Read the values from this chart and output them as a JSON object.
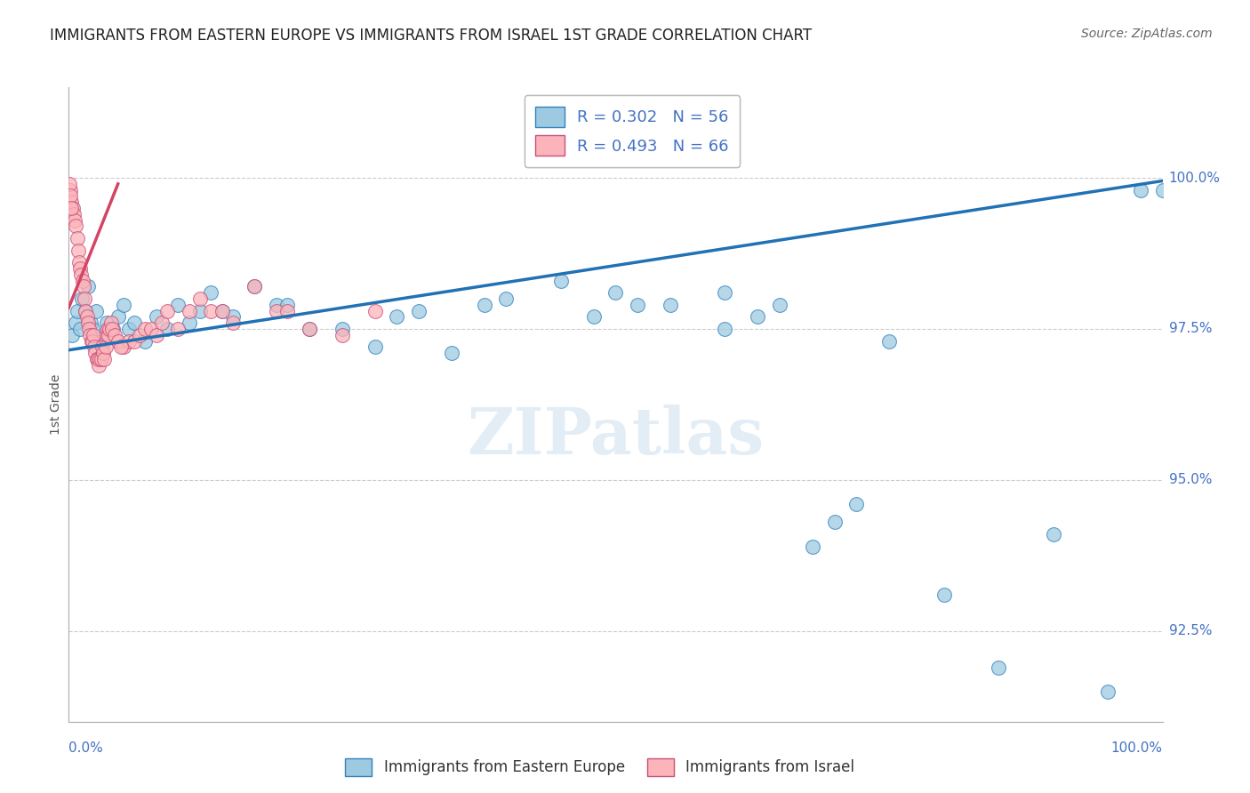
{
  "title": "IMMIGRANTS FROM EASTERN EUROPE VS IMMIGRANTS FROM ISRAEL 1ST GRADE CORRELATION CHART",
  "source": "Source: ZipAtlas.com",
  "ylabel": "1st Grade",
  "y_tick_labels": [
    "92.5%",
    "95.0%",
    "97.5%",
    "100.0%"
  ],
  "y_tick_values": [
    92.5,
    95.0,
    97.5,
    100.0
  ],
  "xlim": [
    0.0,
    100.0
  ],
  "ylim": [
    91.0,
    101.5
  ],
  "legend_blue": "R = 0.302   N = 56",
  "legend_pink": "R = 0.493   N = 66",
  "legend_bottom_blue": "Immigrants from Eastern Europe",
  "legend_bottom_pink": "Immigrants from Israel",
  "blue_face_color": "#9ecae1",
  "blue_edge_color": "#3182bd",
  "pink_face_color": "#fbb4b9",
  "pink_edge_color": "#c9507a",
  "blue_line_color": "#2171b5",
  "pink_line_color": "#d44466",
  "watermark": "ZIPatlas",
  "background_color": "#ffffff",
  "grid_color": "#cccccc",
  "tick_label_color": "#4472c4",
  "title_color": "#222222",
  "source_color": "#666666",
  "ylabel_color": "#555555",
  "blue_scatter_x": [
    0.3,
    0.6,
    0.8,
    1.0,
    1.2,
    1.5,
    1.8,
    2.0,
    2.2,
    2.5,
    3.0,
    3.5,
    4.0,
    4.5,
    5.0,
    5.5,
    6.0,
    7.0,
    8.0,
    9.0,
    10.0,
    11.0,
    12.0,
    13.0,
    14.0,
    15.0,
    17.0,
    19.0,
    20.0,
    22.0,
    25.0,
    28.0,
    30.0,
    32.0,
    35.0,
    38.0,
    40.0,
    45.0,
    48.0,
    50.0,
    52.0,
    55.0,
    60.0,
    63.0,
    65.0,
    68.0,
    70.0,
    72.0,
    75.0,
    80.0,
    85.0,
    90.0,
    95.0,
    98.0,
    100.0,
    60.0
  ],
  "blue_scatter_y": [
    97.4,
    97.6,
    97.8,
    97.5,
    98.0,
    97.8,
    98.2,
    97.6,
    97.5,
    97.8,
    97.3,
    97.6,
    97.5,
    97.7,
    97.9,
    97.5,
    97.6,
    97.3,
    97.7,
    97.5,
    97.9,
    97.6,
    97.8,
    98.1,
    97.8,
    97.7,
    98.2,
    97.9,
    97.9,
    97.5,
    97.5,
    97.2,
    97.7,
    97.8,
    97.1,
    97.9,
    98.0,
    98.3,
    97.7,
    98.1,
    97.9,
    97.9,
    98.1,
    97.7,
    97.9,
    93.9,
    94.3,
    94.6,
    97.3,
    93.1,
    91.9,
    94.1,
    91.5,
    99.8,
    99.8,
    97.5
  ],
  "pink_scatter_x": [
    0.15,
    0.25,
    0.35,
    0.45,
    0.55,
    0.65,
    0.75,
    0.85,
    0.95,
    1.05,
    1.15,
    1.25,
    1.35,
    1.45,
    1.55,
    1.65,
    1.75,
    1.85,
    1.95,
    2.05,
    2.15,
    2.25,
    2.35,
    2.45,
    2.55,
    2.65,
    2.75,
    2.85,
    2.95,
    3.05,
    3.15,
    3.25,
    3.35,
    3.45,
    3.55,
    3.65,
    3.75,
    3.85,
    3.95,
    4.2,
    4.5,
    5.0,
    5.5,
    6.0,
    6.5,
    7.0,
    7.5,
    8.0,
    8.5,
    9.0,
    10.0,
    11.0,
    12.0,
    13.0,
    14.0,
    15.0,
    17.0,
    19.0,
    20.0,
    22.0,
    25.0,
    28.0,
    0.08,
    4.8,
    0.12,
    0.22
  ],
  "pink_scatter_y": [
    99.8,
    99.6,
    99.5,
    99.4,
    99.3,
    99.2,
    99.0,
    98.8,
    98.6,
    98.5,
    98.4,
    98.3,
    98.2,
    98.0,
    97.8,
    97.7,
    97.6,
    97.5,
    97.4,
    97.3,
    97.3,
    97.4,
    97.2,
    97.1,
    97.0,
    97.0,
    96.9,
    97.0,
    97.0,
    97.2,
    97.1,
    97.0,
    97.2,
    97.4,
    97.5,
    97.4,
    97.5,
    97.6,
    97.5,
    97.4,
    97.3,
    97.2,
    97.3,
    97.3,
    97.4,
    97.5,
    97.5,
    97.4,
    97.6,
    97.8,
    97.5,
    97.8,
    98.0,
    97.8,
    97.8,
    97.6,
    98.2,
    97.8,
    97.8,
    97.5,
    97.4,
    97.8,
    99.9,
    97.2,
    99.7,
    99.5
  ],
  "blue_line_x": [
    0.0,
    100.0
  ],
  "blue_line_y": [
    97.15,
    99.95
  ],
  "pink_line_x": [
    0.0,
    4.5
  ],
  "pink_line_y": [
    97.85,
    99.9
  ]
}
